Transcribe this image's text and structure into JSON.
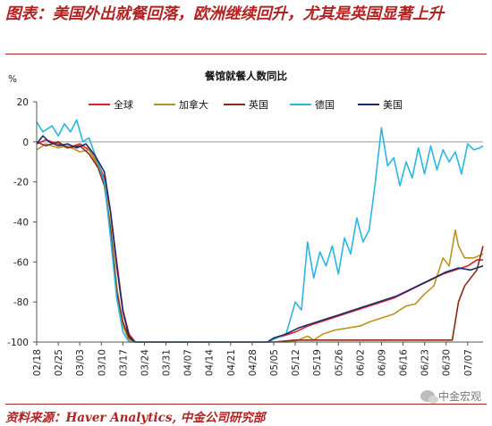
{
  "figure": {
    "title": "图表：美国外出就餐回落，欧洲继续回升，尤其是英国显著上升",
    "source": "资料来源：Haver Analytics, 中金公司研究部",
    "watermark": "中金宏观"
  },
  "chart_data": {
    "type": "line",
    "title": "餐馆就餐人数同比",
    "ylabel": "%",
    "ylim": [
      -100,
      20
    ],
    "yticks": [
      20,
      0,
      -20,
      -40,
      -60,
      -80,
      -100
    ],
    "xlabel": "",
    "start_date": "02/18",
    "end_date": "07/12",
    "x_tick_labels": [
      "02/18",
      "02/25",
      "03/03",
      "03/10",
      "03/17",
      "03/24",
      "03/31",
      "04/07",
      "04/14",
      "04/21",
      "04/28",
      "05/05",
      "05/12",
      "05/19",
      "05/26",
      "06/02",
      "06/09",
      "06/16",
      "06/23",
      "06/30",
      "07/07"
    ],
    "legend_position": "top",
    "series": [
      {
        "name": "全球",
        "color": "#e0202a",
        "points": [
          [
            "02/18",
            -1
          ],
          [
            "02/21",
            1
          ],
          [
            "02/25",
            -1
          ],
          [
            "02/28",
            -3
          ],
          [
            "03/03",
            -1
          ],
          [
            "03/06",
            -4
          ],
          [
            "03/09",
            -11
          ],
          [
            "03/11",
            -18
          ],
          [
            "03/13",
            -35
          ],
          [
            "03/15",
            -60
          ],
          [
            "03/17",
            -84
          ],
          [
            "03/19",
            -96
          ],
          [
            "03/21",
            -100
          ],
          [
            "05/03",
            -100
          ],
          [
            "05/05",
            -98
          ],
          [
            "05/08",
            -97
          ],
          [
            "05/12",
            -95
          ],
          [
            "05/16",
            -92
          ],
          [
            "05/20",
            -90
          ],
          [
            "05/24",
            -88
          ],
          [
            "05/28",
            -86
          ],
          [
            "06/01",
            -84
          ],
          [
            "06/05",
            -82
          ],
          [
            "06/09",
            -80
          ],
          [
            "06/13",
            -78
          ],
          [
            "06/17",
            -75
          ],
          [
            "06/21",
            -72
          ],
          [
            "06/25",
            -69
          ],
          [
            "06/29",
            -66
          ],
          [
            "07/03",
            -64
          ],
          [
            "07/07",
            -62
          ],
          [
            "07/10",
            -59
          ],
          [
            "07/12",
            -59
          ]
        ]
      },
      {
        "name": "加拿大",
        "color": "#b8961e",
        "points": [
          [
            "02/18",
            -4
          ],
          [
            "02/21",
            -1
          ],
          [
            "02/25",
            -3
          ],
          [
            "02/28",
            -2
          ],
          [
            "03/03",
            -5
          ],
          [
            "03/06",
            -4
          ],
          [
            "03/09",
            -12
          ],
          [
            "03/11",
            -20
          ],
          [
            "03/13",
            -42
          ],
          [
            "03/15",
            -72
          ],
          [
            "03/17",
            -92
          ],
          [
            "03/19",
            -99
          ],
          [
            "03/21",
            -100
          ],
          [
            "05/10",
            -100
          ],
          [
            "05/13",
            -99
          ],
          [
            "05/16",
            -97
          ],
          [
            "05/18",
            -99
          ],
          [
            "05/21",
            -96
          ],
          [
            "05/25",
            -94
          ],
          [
            "05/29",
            -93
          ],
          [
            "06/02",
            -92
          ],
          [
            "06/05",
            -90
          ],
          [
            "06/09",
            -88
          ],
          [
            "06/13",
            -86
          ],
          [
            "06/17",
            -82
          ],
          [
            "06/20",
            -81
          ],
          [
            "06/23",
            -76
          ],
          [
            "06/26",
            -72
          ],
          [
            "06/29",
            -58
          ],
          [
            "07/01",
            -62
          ],
          [
            "07/03",
            -44
          ],
          [
            "07/04",
            -52
          ],
          [
            "07/06",
            -58
          ],
          [
            "07/09",
            -58
          ],
          [
            "07/12",
            -56
          ]
        ]
      },
      {
        "name": "英国",
        "color": "#8b2b14",
        "points": [
          [
            "02/18",
            0
          ],
          [
            "02/21",
            -2
          ],
          [
            "02/25",
            0
          ],
          [
            "02/28",
            -3
          ],
          [
            "03/03",
            -2
          ],
          [
            "03/06",
            -6
          ],
          [
            "03/09",
            -13
          ],
          [
            "03/11",
            -22
          ],
          [
            "03/13",
            -44
          ],
          [
            "03/15",
            -75
          ],
          [
            "03/17",
            -90
          ],
          [
            "03/19",
            -98
          ],
          [
            "03/21",
            -100
          ],
          [
            "05/05",
            -100
          ],
          [
            "05/12",
            -99
          ],
          [
            "06/30",
            -99
          ],
          [
            "07/02",
            -99
          ],
          [
            "07/04",
            -80
          ],
          [
            "07/06",
            -72
          ],
          [
            "07/08",
            -68
          ],
          [
            "07/10",
            -64
          ],
          [
            "07/12",
            -52
          ]
        ]
      },
      {
        "name": "德国",
        "color": "#2bb5e0",
        "points": [
          [
            "02/18",
            10
          ],
          [
            "02/20",
            5
          ],
          [
            "02/23",
            8
          ],
          [
            "02/25",
            3
          ],
          [
            "02/27",
            9
          ],
          [
            "02/29",
            5
          ],
          [
            "03/02",
            11
          ],
          [
            "03/04",
            0
          ],
          [
            "03/06",
            2
          ],
          [
            "03/09",
            -11
          ],
          [
            "03/11",
            -20
          ],
          [
            "03/13",
            -48
          ],
          [
            "03/15",
            -78
          ],
          [
            "03/17",
            -95
          ],
          [
            "03/19",
            -100
          ],
          [
            "05/03",
            -100
          ],
          [
            "05/06",
            -98
          ],
          [
            "05/09",
            -96
          ],
          [
            "05/12",
            -80
          ],
          [
            "05/14",
            -84
          ],
          [
            "05/16",
            -50
          ],
          [
            "05/18",
            -68
          ],
          [
            "05/20",
            -55
          ],
          [
            "05/22",
            -62
          ],
          [
            "05/24",
            -52
          ],
          [
            "05/26",
            -66
          ],
          [
            "05/28",
            -48
          ],
          [
            "05/30",
            -56
          ],
          [
            "06/01",
            -38
          ],
          [
            "06/03",
            -50
          ],
          [
            "06/05",
            -44
          ],
          [
            "06/07",
            -20
          ],
          [
            "06/09",
            7
          ],
          [
            "06/11",
            -12
          ],
          [
            "06/13",
            -8
          ],
          [
            "06/15",
            -22
          ],
          [
            "06/17",
            -10
          ],
          [
            "06/19",
            -18
          ],
          [
            "06/21",
            -3
          ],
          [
            "06/23",
            -16
          ],
          [
            "06/25",
            -2
          ],
          [
            "06/27",
            -14
          ],
          [
            "06/29",
            -4
          ],
          [
            "07/01",
            -10
          ],
          [
            "07/03",
            -5
          ],
          [
            "07/05",
            -16
          ],
          [
            "07/07",
            -1
          ],
          [
            "07/09",
            -4
          ],
          [
            "07/11",
            -3
          ],
          [
            "07/12",
            -2
          ]
        ]
      },
      {
        "name": "美国",
        "color": "#1a2a6c",
        "points": [
          [
            "02/18",
            -1
          ],
          [
            "02/20",
            3
          ],
          [
            "02/22",
            0
          ],
          [
            "02/25",
            -2
          ],
          [
            "02/28",
            -1
          ],
          [
            "03/02",
            -3
          ],
          [
            "03/05",
            -1
          ],
          [
            "03/08",
            -7
          ],
          [
            "03/11",
            -15
          ],
          [
            "03/13",
            -35
          ],
          [
            "03/15",
            -62
          ],
          [
            "03/17",
            -85
          ],
          [
            "03/19",
            -97
          ],
          [
            "03/21",
            -100
          ],
          [
            "05/03",
            -100
          ],
          [
            "05/05",
            -98
          ],
          [
            "05/09",
            -96
          ],
          [
            "05/13",
            -93
          ],
          [
            "05/17",
            -91
          ],
          [
            "05/21",
            -89
          ],
          [
            "05/25",
            -87
          ],
          [
            "05/29",
            -85
          ],
          [
            "06/02",
            -83
          ],
          [
            "06/06",
            -81
          ],
          [
            "06/10",
            -79
          ],
          [
            "06/14",
            -77
          ],
          [
            "06/18",
            -74
          ],
          [
            "06/22",
            -71
          ],
          [
            "06/26",
            -68
          ],
          [
            "06/30",
            -65
          ],
          [
            "07/04",
            -63
          ],
          [
            "07/08",
            -64
          ],
          [
            "07/12",
            -62
          ]
        ]
      }
    ]
  }
}
